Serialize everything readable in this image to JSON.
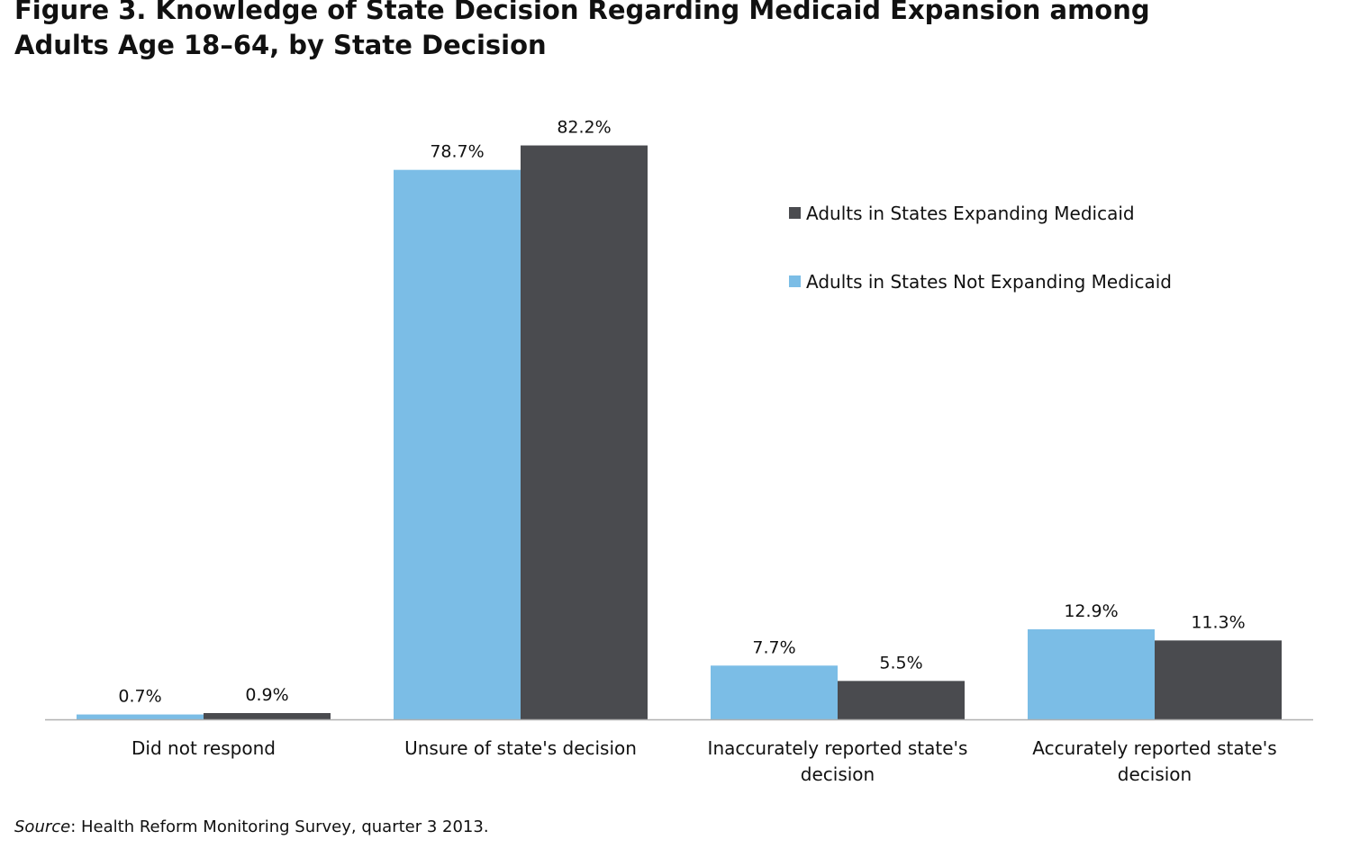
{
  "title_lines": [
    "Figure 3. Knowledge of State Decision Regarding Medicaid Expansion among",
    "Adults Age 18–64, by State Decision"
  ],
  "source": {
    "label": "Source",
    "text": ": Health Reform Monitoring Survey, quarter 3 2013."
  },
  "chart_data": {
    "type": "bar",
    "title": "Figure 3. Knowledge of State Decision Regarding Medicaid Expansion among Adults Age 18–64, by State Decision",
    "categories": [
      [
        "Did not respond"
      ],
      [
        "Unsure of state's decision"
      ],
      [
        "Inaccurately reported state's",
        "decision"
      ],
      [
        "Accurately reported state's",
        "decision"
      ]
    ],
    "series": [
      {
        "name": "Adults in States Not Expanding Medicaid",
        "color": "#7bbde6",
        "values": [
          0.7,
          78.7,
          7.7,
          12.9
        ],
        "labels": [
          "0.7%",
          "78.7%",
          "7.7%",
          "12.9%"
        ]
      },
      {
        "name": "Adults in States Expanding Medicaid",
        "color": "#4a4b4f",
        "values": [
          0.9,
          82.2,
          5.5,
          11.3
        ],
        "labels": [
          "0.9%",
          "82.2%",
          "5.5%",
          "11.3%"
        ]
      }
    ],
    "legend": {
      "placement": "top-right",
      "order": [
        1,
        0
      ]
    },
    "ylim": [
      0,
      100
    ],
    "grid": false,
    "xlabel": "",
    "ylabel": ""
  }
}
